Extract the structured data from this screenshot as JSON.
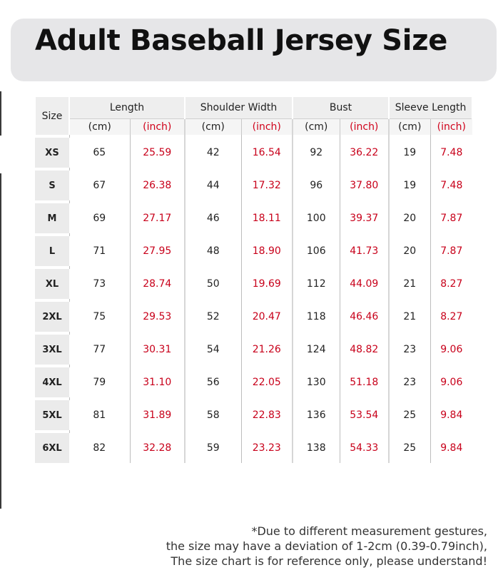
{
  "title": "Adult Baseball Jersey Size",
  "table": {
    "size_header": "Size",
    "groups": [
      "Length",
      "Shoulder Width",
      "Bust",
      "Sleeve Length"
    ],
    "unit_cm": "(cm)",
    "unit_inch": "(inch)",
    "rows": [
      {
        "size": "XS",
        "length_cm": "65",
        "length_in": "25.59",
        "shoulder_cm": "42",
        "shoulder_in": "16.54",
        "bust_cm": "92",
        "bust_in": "36.22",
        "sleeve_cm": "19",
        "sleeve_in": "7.48"
      },
      {
        "size": "S",
        "length_cm": "67",
        "length_in": "26.38",
        "shoulder_cm": "44",
        "shoulder_in": "17.32",
        "bust_cm": "96",
        "bust_in": "37.80",
        "sleeve_cm": "19",
        "sleeve_in": "7.48"
      },
      {
        "size": "M",
        "length_cm": "69",
        "length_in": "27.17",
        "shoulder_cm": "46",
        "shoulder_in": "18.11",
        "bust_cm": "100",
        "bust_in": "39.37",
        "sleeve_cm": "20",
        "sleeve_in": "7.87"
      },
      {
        "size": "L",
        "length_cm": "71",
        "length_in": "27.95",
        "shoulder_cm": "48",
        "shoulder_in": "18.90",
        "bust_cm": "106",
        "bust_in": "41.73",
        "sleeve_cm": "20",
        "sleeve_in": "7.87"
      },
      {
        "size": "XL",
        "length_cm": "73",
        "length_in": "28.74",
        "shoulder_cm": "50",
        "shoulder_in": "19.69",
        "bust_cm": "112",
        "bust_in": "44.09",
        "sleeve_cm": "21",
        "sleeve_in": "8.27"
      },
      {
        "size": "2XL",
        "length_cm": "75",
        "length_in": "29.53",
        "shoulder_cm": "52",
        "shoulder_in": "20.47",
        "bust_cm": "118",
        "bust_in": "46.46",
        "sleeve_cm": "21",
        "sleeve_in": "8.27"
      },
      {
        "size": "3XL",
        "length_cm": "77",
        "length_in": "30.31",
        "shoulder_cm": "54",
        "shoulder_in": "21.26",
        "bust_cm": "124",
        "bust_in": "48.82",
        "sleeve_cm": "23",
        "sleeve_in": "9.06"
      },
      {
        "size": "4XL",
        "length_cm": "79",
        "length_in": "31.10",
        "shoulder_cm": "56",
        "shoulder_in": "22.05",
        "bust_cm": "130",
        "bust_in": "51.18",
        "sleeve_cm": "23",
        "sleeve_in": "9.06"
      },
      {
        "size": "5XL",
        "length_cm": "81",
        "length_in": "31.89",
        "shoulder_cm": "58",
        "shoulder_in": "22.83",
        "bust_cm": "136",
        "bust_in": "53.54",
        "sleeve_cm": "25",
        "sleeve_in": "9.84"
      },
      {
        "size": "6XL",
        "length_cm": "82",
        "length_in": "32.28",
        "shoulder_cm": "59",
        "shoulder_in": "23.23",
        "bust_cm": "138",
        "bust_in": "54.33",
        "sleeve_cm": "25",
        "sleeve_in": "9.84"
      }
    ]
  },
  "note": {
    "line1": "*Due to different measurement gestures,",
    "line2": "the size may have a deviation of 1-2cm (0.39-0.79inch),",
    "line3": "The size chart is for reference only, please understand!"
  },
  "colors": {
    "inch_text": "#d0021b",
    "title_bg": "#e6e6e8",
    "size_cell_bg": "#ebebeb"
  }
}
